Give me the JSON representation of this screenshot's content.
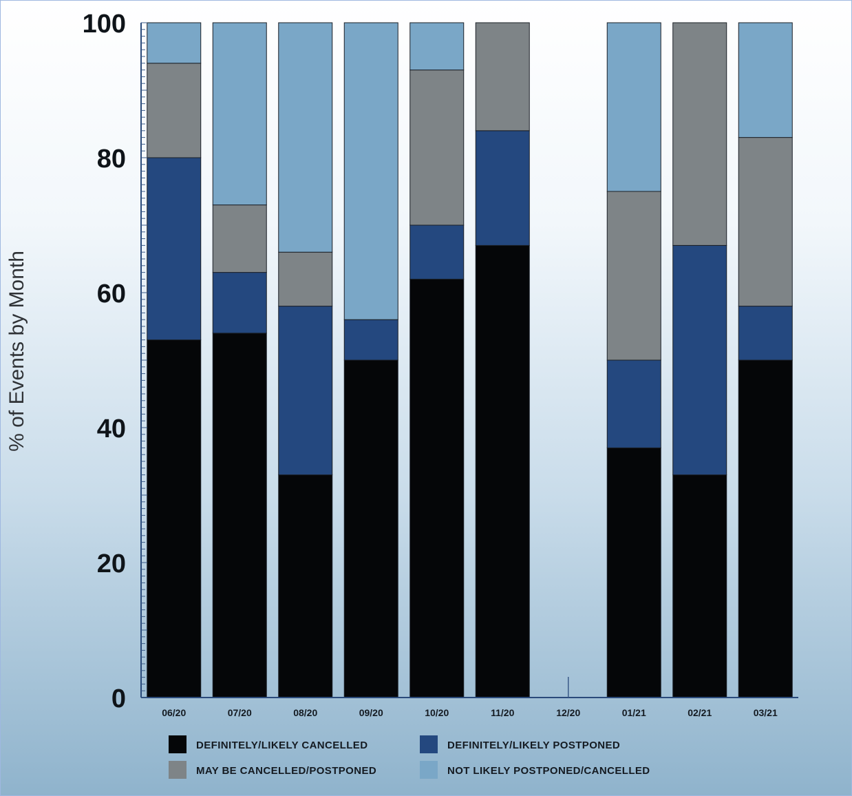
{
  "chart_data": {
    "type": "bar",
    "stacked": true,
    "title": "",
    "xlabel": "",
    "ylabel": "% of Events by Month",
    "ylim": [
      0,
      100
    ],
    "yticks": [
      0,
      20,
      40,
      60,
      80,
      100
    ],
    "categories": [
      "06/20",
      "07/20",
      "08/20",
      "09/20",
      "10/20",
      "11/20",
      "12/20",
      "01/21",
      "02/21",
      "03/21"
    ],
    "series": [
      {
        "name": "DEFINITELY/LIKELY CANCELLED",
        "color": "#050608",
        "values": [
          53,
          54,
          33,
          50,
          62,
          67,
          0,
          37,
          33,
          50
        ]
      },
      {
        "name": "DEFINITELY/LIKELY POSTPONED",
        "color": "#24487f",
        "values": [
          27,
          9,
          25,
          6,
          8,
          17,
          0,
          13,
          34,
          8
        ]
      },
      {
        "name": "MAY BE CANCELLED/POSTPONED",
        "color": "#7e8487",
        "values": [
          14,
          10,
          8,
          0,
          23,
          16,
          0,
          25,
          33,
          25
        ]
      },
      {
        "name": "NOT LIKELY POSTPONED/CANCELLED",
        "color": "#7aa7c7",
        "values": [
          6,
          27,
          34,
          44,
          7,
          0,
          0,
          25,
          0,
          17
        ]
      }
    ],
    "legend_position": "bottom",
    "grid": false
  }
}
